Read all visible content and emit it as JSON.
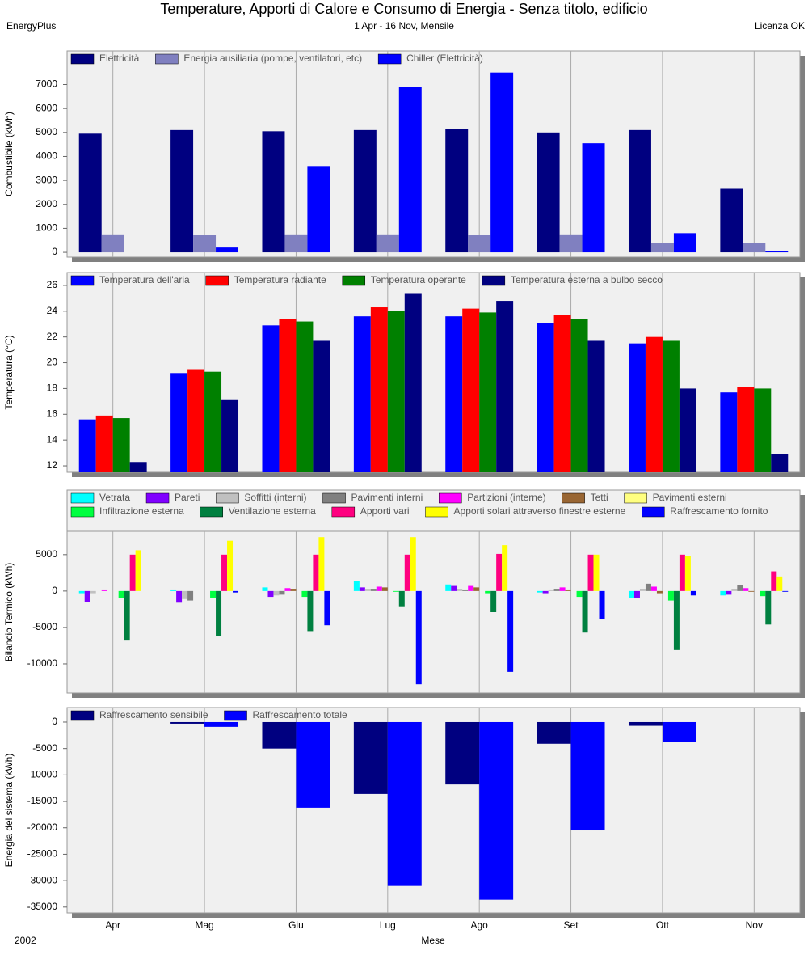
{
  "header": {
    "title": "Temperature, Apporti di Calore e Consumo di Energia - Senza titolo, edificio",
    "program": "EnergyPlus",
    "period": "1 Apr - 16 Nov, Mensile",
    "license": "Licenza OK"
  },
  "footer": {
    "year": "2002"
  },
  "chart_data": [
    {
      "type": "bar",
      "ylabel": "Combustibile (kWh)",
      "ylim": [
        -200,
        8400
      ],
      "yticks": [
        0,
        1000,
        2000,
        3000,
        4000,
        5000,
        6000,
        7000
      ],
      "series": [
        {
          "name": "Elettricità",
          "color": "#000080",
          "values": [
            4950,
            5100,
            5050,
            5100,
            5150,
            5000,
            5100,
            2650
          ]
        },
        {
          "name": "Energia ausiliaria (pompe, ventilatori, etc)",
          "color": "#8080c0",
          "values": [
            750,
            730,
            750,
            750,
            720,
            750,
            400,
            400
          ]
        },
        {
          "name": "Chiller (Elettricità)",
          "color": "#0000ff",
          "values": [
            0,
            200,
            3600,
            6900,
            7500,
            4550,
            800,
            50
          ]
        }
      ]
    },
    {
      "type": "bar",
      "ylabel": "Temperatura (°C)",
      "ylim": [
        11.5,
        27
      ],
      "yticks": [
        12,
        14,
        16,
        18,
        20,
        22,
        24,
        26
      ],
      "series": [
        {
          "name": "Temperatura dell'aria",
          "color": "#0000ff",
          "values": [
            15.6,
            19.2,
            22.9,
            23.6,
            23.6,
            23.1,
            21.5,
            17.7
          ]
        },
        {
          "name": "Temperatura radiante",
          "color": "#ff0000",
          "values": [
            15.9,
            19.5,
            23.4,
            24.3,
            24.2,
            23.7,
            22.0,
            18.1
          ]
        },
        {
          "name": "Temperatura operante",
          "color": "#008000",
          "values": [
            15.7,
            19.3,
            23.2,
            24.0,
            23.9,
            23.4,
            21.7,
            18.0
          ]
        },
        {
          "name": "Temperatura esterna a bulbo secco",
          "color": "#000080",
          "values": [
            12.3,
            17.1,
            21.7,
            25.4,
            24.8,
            21.7,
            18.0,
            12.9
          ]
        }
      ]
    },
    {
      "type": "bar",
      "ylabel": "Bilancio Termico (kWh)",
      "ylim": [
        -14000,
        8200
      ],
      "yticks": [
        -10000,
        -5000,
        0,
        5000
      ],
      "series": [
        {
          "name": "Vetrata",
          "color": "#00ffff",
          "values": [
            -300,
            100,
            500,
            1400,
            900,
            -200,
            -900,
            -600
          ]
        },
        {
          "name": "Pareti",
          "color": "#8000ff",
          "values": [
            -1500,
            -1600,
            -800,
            500,
            700,
            -300,
            -900,
            -500
          ]
        },
        {
          "name": "Soffitti (interni)",
          "color": "#c0c0c0",
          "values": [
            -300,
            -1100,
            -600,
            200,
            200,
            100,
            300,
            300
          ]
        },
        {
          "name": "Pavimenti interni",
          "color": "#808080",
          "values": [
            0,
            -1300,
            -500,
            200,
            100,
            200,
            1000,
            800
          ]
        },
        {
          "name": "Partizioni (interne)",
          "color": "#ff00ff",
          "values": [
            100,
            0,
            400,
            600,
            700,
            500,
            600,
            400
          ]
        },
        {
          "name": "Tetti",
          "color": "#996633",
          "values": [
            0,
            0,
            200,
            500,
            500,
            100,
            -300,
            -100
          ]
        },
        {
          "name": "Pavimenti esterni",
          "color": "#ffff80",
          "values": [
            0,
            0,
            0,
            0,
            0,
            0,
            0,
            0
          ]
        },
        {
          "name": "Infiltrazione esterna",
          "color": "#00ff40",
          "values": [
            -1000,
            -900,
            -800,
            -100,
            -300,
            -800,
            -1300,
            -700
          ]
        },
        {
          "name": "Ventilazione esterna",
          "color": "#008040",
          "values": [
            -6800,
            -6200,
            -5500,
            -2200,
            -2900,
            -5700,
            -8100,
            -4600
          ]
        },
        {
          "name": "Apporti vari",
          "color": "#ff0080",
          "values": [
            5000,
            5000,
            5000,
            5000,
            5100,
            5000,
            5000,
            2700
          ]
        },
        {
          "name": "Apporti solari attraverso finestre esterne",
          "color": "#ffff00",
          "values": [
            5600,
            6900,
            7400,
            7400,
            6300,
            5000,
            4800,
            2000
          ]
        },
        {
          "name": "Raffrescamento fornito",
          "color": "#0000ff",
          "values": [
            0,
            -200,
            -4700,
            -12800,
            -11100,
            -3900,
            -600,
            -100
          ]
        }
      ]
    },
    {
      "type": "bar",
      "ylabel": "Energia del sistema (kWh)",
      "xlabel": "Mese",
      "ylim": [
        -36100,
        2750
      ],
      "yticks": [
        -35000,
        -30000,
        -25000,
        -20000,
        -15000,
        -10000,
        -5000,
        0
      ],
      "categories": [
        "Apr",
        "Mag",
        "Giu",
        "Lug",
        "Ago",
        "Set",
        "Ott",
        "Nov"
      ],
      "series": [
        {
          "name": "Raffrescamento sensibile",
          "color": "#000080",
          "values": [
            0,
            -300,
            -5000,
            -13600,
            -11800,
            -4100,
            -700,
            0
          ]
        },
        {
          "name": "Raffrescamento totale",
          "color": "#0000ff",
          "values": [
            0,
            -900,
            -16200,
            -31000,
            -33600,
            -20500,
            -3700,
            0
          ]
        }
      ]
    }
  ]
}
